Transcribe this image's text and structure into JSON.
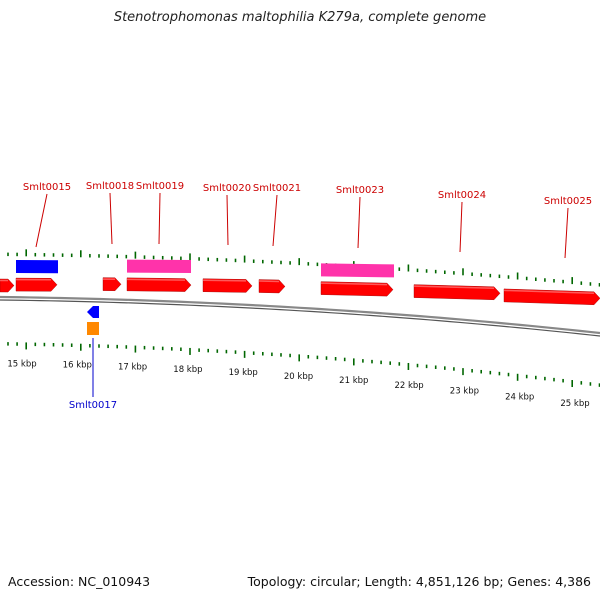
{
  "title": "Stenotrophomonas maltophilia K279a, complete genome",
  "footer": {
    "accession": "Accession: NC_010943",
    "summary": "Topology: circular; Length: 4,851,126 bp; Genes: 4,386"
  },
  "colors": {
    "forward_cds": "#ff0000",
    "reverse_cds": "#0000ff",
    "forward_rna": "#ff33aa",
    "reverse_other": "#ff8800",
    "forward_label": "#cc0000",
    "reverse_label": "#0000cc",
    "backbone": "#888888",
    "ticks": "#006600"
  },
  "scale": {
    "labels": [
      "15 kbp",
      "16 kbp",
      "17 kbp",
      "18 kbp",
      "19 kbp",
      "20 kbp",
      "21 kbp",
      "22 kbp",
      "23 kbp",
      "24 kbp",
      "25 kbp"
    ]
  },
  "gene_labels": {
    "forward": [
      "Smlt0015",
      "Smlt0018",
      "Smlt0019",
      "Smlt0020",
      "Smlt0021",
      "Smlt0023",
      "Smlt0024",
      "Smlt0025"
    ],
    "reverse": [
      "Smlt0017"
    ]
  }
}
